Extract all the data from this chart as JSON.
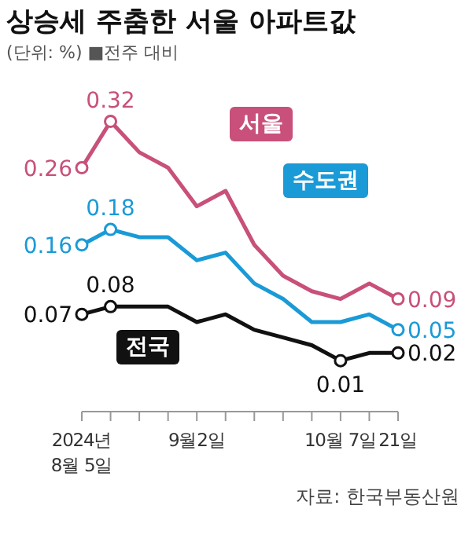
{
  "chart_data": {
    "type": "line",
    "title": "상승세 주춤한 서울 아파트값",
    "subtitle": "(단위: %) ■전주 대비",
    "categories": [
      "2024년\n8월 5일",
      null,
      null,
      null,
      "9월2일",
      null,
      null,
      null,
      null,
      "10월 7일",
      null,
      "21일"
    ],
    "series": [
      {
        "name": "서울",
        "color": "#c8507a",
        "values": [
          0.26,
          0.32,
          0.28,
          0.26,
          0.21,
          0.23,
          0.16,
          0.12,
          0.1,
          0.09,
          0.11,
          0.09
        ],
        "value_labels": [
          "0.26",
          "0.32",
          null,
          null,
          null,
          null,
          null,
          null,
          null,
          null,
          null,
          "0.09"
        ]
      },
      {
        "name": "수도권",
        "color": "#1a9ad6",
        "values": [
          0.16,
          0.18,
          0.17,
          0.17,
          0.14,
          0.15,
          0.11,
          0.09,
          0.06,
          0.06,
          0.07,
          0.05
        ],
        "value_labels": [
          "0.16",
          "0.18",
          null,
          null,
          null,
          null,
          null,
          null,
          null,
          null,
          null,
          "0.05"
        ]
      },
      {
        "name": "전국",
        "color": "#111111",
        "values": [
          0.07,
          0.08,
          0.08,
          0.08,
          0.06,
          0.07,
          0.05,
          0.04,
          0.03,
          0.01,
          0.02,
          0.02
        ],
        "value_labels": [
          "0.07",
          "0.08",
          null,
          null,
          null,
          null,
          null,
          null,
          null,
          "0.01",
          null,
          "0.02"
        ]
      }
    ],
    "grid": false,
    "annotations": [
      "자료: 한국부동산원"
    ]
  }
}
